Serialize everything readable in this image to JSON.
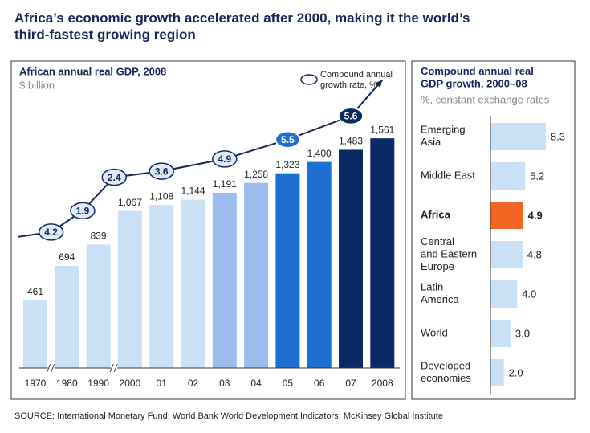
{
  "title": "Africa’s economic growth accelerated after 2000, making it the world’s\nthird-fastest growing region",
  "source": "SOURCE: International Monetary Fund; World Bank World Development Indicators; McKinsey Global Institute",
  "chart_data": [
    {
      "type": "bar",
      "title": "African annual real GDP, 2008",
      "subtitle": "$ billion",
      "categories": [
        "1970",
        "1980",
        "1990",
        "2000",
        "01",
        "02",
        "03",
        "04",
        "05",
        "06",
        "07",
        "2008"
      ],
      "values": [
        461,
        694,
        839,
        1067,
        1108,
        1144,
        1191,
        1258,
        1323,
        1400,
        1483,
        1561
      ],
      "value_labels": [
        "461",
        "694",
        "839",
        "1,067",
        "1,108",
        "1,144",
        "1,191",
        "1,258",
        "1,323",
        "1,400",
        "1,483",
        "1,561"
      ],
      "colors": [
        "#c9e0f5",
        "#c9e0f5",
        "#c9e0f5",
        "#c9e0f5",
        "#c9e0f5",
        "#c9e0f5",
        "#9dbdee",
        "#9dbdee",
        "#1f6fd0",
        "#1f6fd0",
        "#0b2a63",
        "#0b2a63"
      ],
      "ylim": [
        0,
        1600
      ],
      "growth": {
        "legend": "Compound annual\ngrowth rate, %",
        "values": [
          4.2,
          1.9,
          2.4,
          3.6,
          4.9,
          5.5,
          5.6
        ],
        "colors": [
          "#dfeaf8",
          "#dfeaf8",
          "#dfeaf8",
          "#dfeaf8",
          "#dfeaf8",
          "#1f6fd0",
          "#0b2a63"
        ]
      }
    },
    {
      "type": "hbar",
      "title": "Compound annual real\nGDP growth, 2000–08",
      "subtitle": "%, constant exchange rates",
      "categories": [
        "Emerging\nAsia",
        "Middle East",
        "Africa",
        "Central\nand Eastern\nEurope",
        "Latin\nAmerica",
        "World",
        "Developed\neconomies"
      ],
      "values": [
        8.3,
        5.2,
        4.9,
        4.8,
        4.0,
        3.0,
        2.0
      ],
      "value_labels": [
        "8.3",
        "5.2",
        "4.9",
        "4.8",
        "4.0",
        "3.0",
        "2.0"
      ],
      "color": "#c9e0f5",
      "colors": [
        "#c9e0f5",
        "#c9e0f5",
        "#f26522",
        "#c9e0f5",
        "#c9e0f5",
        "#c9e0f5",
        "#c9e0f5"
      ],
      "xlim": [
        0,
        10
      ]
    }
  ]
}
